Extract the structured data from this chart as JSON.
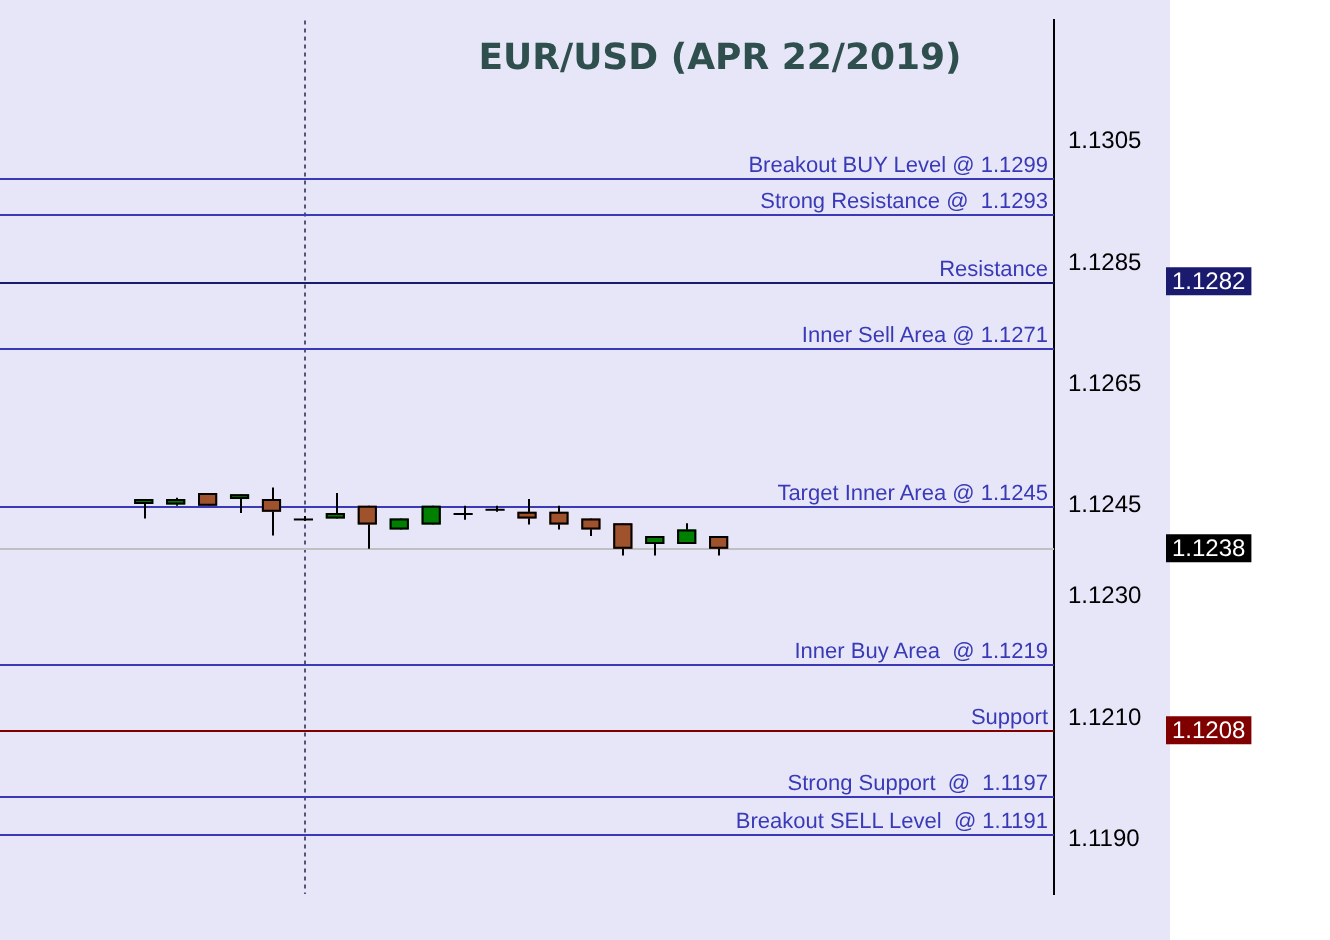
{
  "chart_data": {
    "type": "candlestick",
    "title": "EUR/USD (APR 22/2019)",
    "categories": [
      null,
      null,
      null,
      null,
      null,
      null,
      null,
      null,
      null,
      null,
      null,
      null,
      null,
      null,
      null,
      null,
      null,
      null,
      null,
      null,
      null,
      null,
      null,
      null,
      null,
      null,
      null,
      null,
      null,
      null,
      null,
      null,
      null
    ],
    "ohlc": [
      null,
      null,
      null,
      null,
      [
        1.12453,
        1.12461,
        1.12429,
        1.12461
      ],
      [
        1.12452,
        1.12463,
        1.1245,
        1.12461
      ],
      [
        1.12471,
        1.12471,
        1.1245,
        1.1245
      ],
      [
        1.12461,
        1.12469,
        1.12438,
        1.12469
      ],
      [
        1.12461,
        1.1248,
        1.12401,
        1.1244
      ],
      [
        1.12429,
        1.12433,
        1.12425,
        1.12429
      ],
      [
        1.12429,
        1.12471,
        1.12429,
        1.12438
      ],
      [
        1.1245,
        1.1245,
        1.12379,
        1.12419
      ],
      [
        1.12411,
        1.12429,
        1.12411,
        1.12429
      ],
      [
        1.12419,
        1.1245,
        1.12419,
        1.1245
      ],
      [
        1.12438,
        1.1245,
        1.12427,
        1.12438
      ],
      [
        1.12445,
        1.1245,
        1.1244,
        1.12445
      ],
      [
        1.1244,
        1.12461,
        1.12419,
        1.12429
      ],
      [
        1.1244,
        1.1245,
        1.12411,
        1.12419
      ],
      [
        1.12429,
        1.12429,
        1.124,
        1.12411
      ],
      [
        1.12421,
        1.12421,
        1.12368,
        1.12379
      ],
      [
        1.12387,
        1.124,
        1.12368,
        1.124
      ],
      [
        1.12387,
        1.12421,
        1.12387,
        1.12411
      ],
      [
        1.124,
        1.124,
        1.12368,
        1.12379
      ],
      null,
      null,
      null,
      null,
      null,
      null,
      null,
      null,
      null,
      null
    ],
    "colors": [
      null,
      null,
      null,
      null,
      "#008000",
      "#008000",
      "#a0522d",
      "#008000",
      "#a0522d",
      "#000000",
      "#008000",
      "#a0522d",
      "#008000",
      "#008000",
      "#000000",
      "#000000",
      "#a0522d",
      "#a0522d",
      "#a0522d",
      "#a0522d",
      "#008000",
      "#008000",
      "#a0522d",
      null,
      null,
      null,
      null,
      null,
      null,
      null,
      null,
      null,
      null
    ],
    "ylim": [
      1.1181,
      1.1325
    ],
    "yticks": [
      1.1305,
      1.1285,
      1.1265,
      1.1245,
      {
        "value": 1.123,
        "label": "1.1230"
      },
      {
        "value": 1.121,
        "label": "1.1210"
      },
      {
        "value": 1.119,
        "label": "1.1190"
      }
    ],
    "ref_lines": [
      {
        "axis": "y",
        "value": 1.1299,
        "label": "Breakout BUY Level @ 1.1299",
        "color": "#3a3ab8"
      },
      {
        "axis": "y",
        "value": 1.1293,
        "label": "Strong Resistance @  1.1293",
        "color": "#3a3ab8"
      },
      {
        "axis": "y",
        "value": 1.1282,
        "label": "Resistance",
        "color": "#1a1a6e"
      },
      {
        "axis": "y",
        "value": 1.1271,
        "label": "Inner Sell Area @ 1.1271",
        "color": "#3a3ab8"
      },
      {
        "axis": "y",
        "value": 1.1245,
        "label": "Target Inner Area @ 1.1245",
        "color": "#3a3ab8"
      },
      {
        "axis": "y",
        "value": 1.1238,
        "label": null,
        "color": "#c0c0c0"
      },
      {
        "axis": "y",
        "value": 1.1219,
        "label": "Inner Buy Area  @ 1.1219",
        "color": "#3a3ab8"
      },
      {
        "axis": "y",
        "value": 1.1208,
        "label": "Support",
        "color": "#800000"
      },
      {
        "axis": "y",
        "value": 1.1197,
        "label": "Strong Support  @  1.1197",
        "color": "#3a3ab8"
      },
      {
        "axis": "y",
        "value": 1.1191,
        "label": "Breakout SELL Level  @ 1.1191",
        "color": "#3a3ab8"
      }
    ],
    "annotations": [
      "1.1282",
      "1.1238",
      "1.1208"
    ],
    "grid": false,
    "legend": false
  }
}
